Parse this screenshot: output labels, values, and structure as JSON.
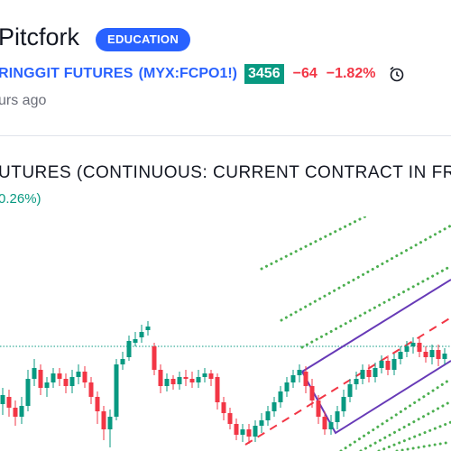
{
  "header": {
    "title": "Pitcfork",
    "badge": "EDUCATION",
    "symbol_name": "RINGGIT FUTURES",
    "symbol_code": "(MYX:FCPO1!)",
    "price": "3456",
    "change_abs": "−64",
    "change_pct": "−1.82%",
    "timestamp": "urs ago",
    "alert_icon": "alarm-clock-icon"
  },
  "chart": {
    "title": "UTURES (CONTINUOUS: CURRENT CONTRACT IN FR",
    "subtitle": "0.26%)"
  },
  "colors": {
    "up": "#089981",
    "down": "#f23645",
    "accent": "#2962ff",
    "pitchfork_channel": "#673ab7",
    "pitchfork_median": "#f23645",
    "fan_lines": "#4caf50",
    "price_line": "#089981"
  }
}
